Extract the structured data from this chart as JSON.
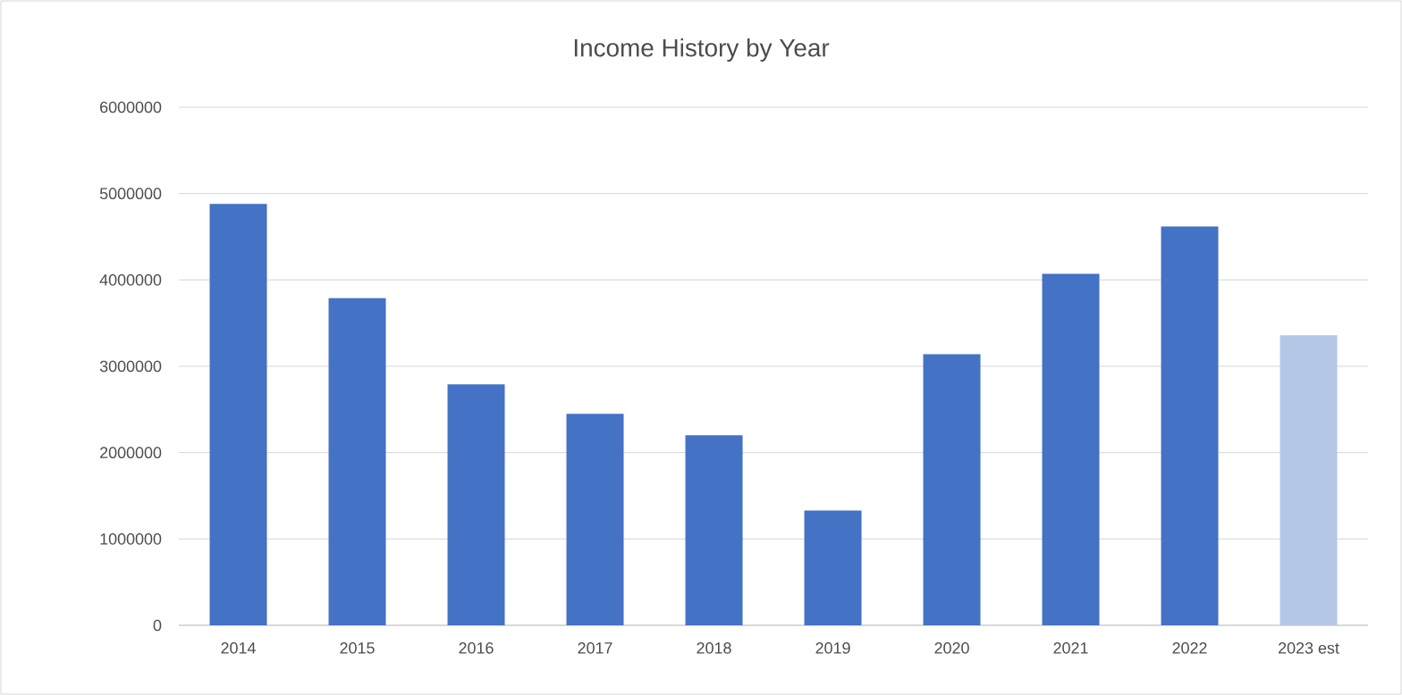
{
  "chart_data": {
    "type": "bar",
    "title": "Income History by Year",
    "categories": [
      "2014",
      "2015",
      "2016",
      "2017",
      "2018",
      "2019",
      "2020",
      "2021",
      "2022",
      "2023 est"
    ],
    "values": [
      4880000,
      3790000,
      2790000,
      2450000,
      2200000,
      1330000,
      3140000,
      4070000,
      4620000,
      3360000
    ],
    "colors": [
      "#4472c4",
      "#4472c4",
      "#4472c4",
      "#4472c4",
      "#4472c4",
      "#4472c4",
      "#4472c4",
      "#4472c4",
      "#4472c4",
      "#b4c7e7"
    ],
    "ylim": [
      0,
      6000000
    ],
    "yticks": [
      0,
      1000000,
      2000000,
      3000000,
      4000000,
      5000000,
      6000000
    ],
    "grid": "y"
  }
}
